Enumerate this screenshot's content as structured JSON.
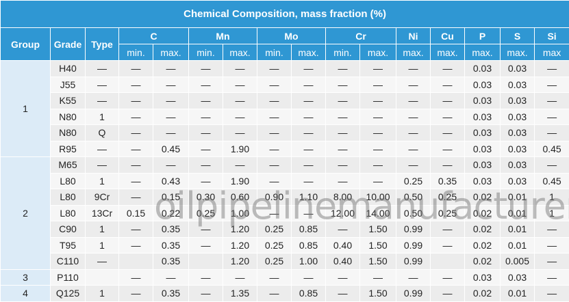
{
  "title": "Chemical Composition, mass fraction (%)",
  "headers": {
    "group": "Group",
    "grade": "Grade",
    "type": "Type",
    "elements": [
      {
        "name": "C",
        "subs": [
          "min.",
          "max."
        ]
      },
      {
        "name": "Mn",
        "subs": [
          "min.",
          "max."
        ]
      },
      {
        "name": "Mo",
        "subs": [
          "min.",
          "max."
        ]
      },
      {
        "name": "Cr",
        "subs": [
          "min.",
          "max."
        ]
      },
      {
        "name": "Ni",
        "subs": [
          "max."
        ]
      },
      {
        "name": "Cu",
        "subs": [
          "max."
        ]
      },
      {
        "name": "P",
        "subs": [
          "max."
        ]
      },
      {
        "name": "S",
        "subs": [
          "max."
        ]
      },
      {
        "name": "Si",
        "subs": [
          "max"
        ]
      }
    ]
  },
  "groups": [
    {
      "label": "1",
      "rows": [
        [
          "H40",
          "—",
          "—",
          "—",
          "—",
          "—",
          "—",
          "—",
          "—",
          "—",
          "—",
          "—",
          "0.03",
          "0.03",
          "—"
        ],
        [
          "J55",
          "—",
          "—",
          "—",
          "—",
          "—",
          "—",
          "—",
          "—",
          "—",
          "—",
          "—",
          "0.03",
          "0.03",
          "—"
        ],
        [
          "K55",
          "—",
          "—",
          "—",
          "—",
          "—",
          "—",
          "—",
          "—",
          "—",
          "—",
          "—",
          "0.03",
          "0.03",
          "—"
        ],
        [
          "N80",
          "1",
          "—",
          "—",
          "—",
          "—",
          "—",
          "—",
          "—",
          "—",
          "—",
          "—",
          "0.03",
          "0.03",
          "—"
        ],
        [
          "N80",
          "Q",
          "—",
          "—",
          "—",
          "—",
          "—",
          "—",
          "—",
          "—",
          "—",
          "—",
          "0.03",
          "0.03",
          "—"
        ],
        [
          "R95",
          "—",
          "—",
          "0.45",
          "—",
          "1.90",
          "—",
          "—",
          "—",
          "—",
          "—",
          "—",
          "0.03",
          "0.03",
          "0.45"
        ]
      ]
    },
    {
      "label": "2",
      "rows": [
        [
          "M65",
          "—",
          "—",
          "—",
          "—",
          "—",
          "—",
          "—",
          "—",
          "—",
          "—",
          "—",
          "0.03",
          "0.03",
          "—"
        ],
        [
          "L80",
          "1",
          "—",
          "0.43",
          "—",
          "1.90",
          "—",
          "—",
          "—",
          "—",
          "0.25",
          "0.35",
          "0.03",
          "0.03",
          "0.45"
        ],
        [
          "L80",
          "9Cr",
          "—",
          "0.15",
          "0.30",
          "0.60",
          "0.90",
          "1.10",
          "8.00",
          "10.00",
          "0.50",
          "0.25",
          "0.02",
          "0.01",
          "1"
        ],
        [
          "L80",
          "13Cr",
          "0.15",
          "0.22",
          "0.25",
          "1.00",
          "—",
          "—",
          "12.00",
          "14.00",
          "0.50",
          "0.25",
          "0.02",
          "0.01",
          "1"
        ],
        [
          "C90",
          "1",
          "—",
          "0.35",
          "—",
          "1.20",
          "0.25",
          "0.85",
          "—",
          "1.50",
          "0.99",
          "—",
          "0.02",
          "0.01",
          "—"
        ],
        [
          "T95",
          "1",
          "—",
          "0.35",
          "—",
          "1.20",
          "0.25",
          "0.85",
          "0.40",
          "1.50",
          "0.99",
          "—",
          "0.02",
          "0.01",
          "—"
        ],
        [
          "C110",
          "—",
          null,
          "0.35",
          null,
          "1.20",
          "0.25",
          "1.00",
          "0.40",
          "1.50",
          "0.99",
          null,
          "0.02",
          "0.005",
          "—"
        ]
      ]
    },
    {
      "label": "3",
      "rows": [
        [
          "P110",
          null,
          "—",
          "—",
          "—",
          "—",
          "—",
          "—",
          "—",
          "—",
          "—",
          "—",
          "0.03",
          "0.03",
          "—"
        ]
      ]
    },
    {
      "label": "4",
      "rows": [
        [
          "Q125",
          "1",
          "—",
          "0.35",
          "—",
          "1.35",
          "—",
          "0.85",
          "—",
          "1.50",
          "0.99",
          "—",
          "0.02",
          "0.01",
          "—"
        ]
      ]
    }
  ],
  "watermark": "oilpipelinemanufacturer.com"
}
